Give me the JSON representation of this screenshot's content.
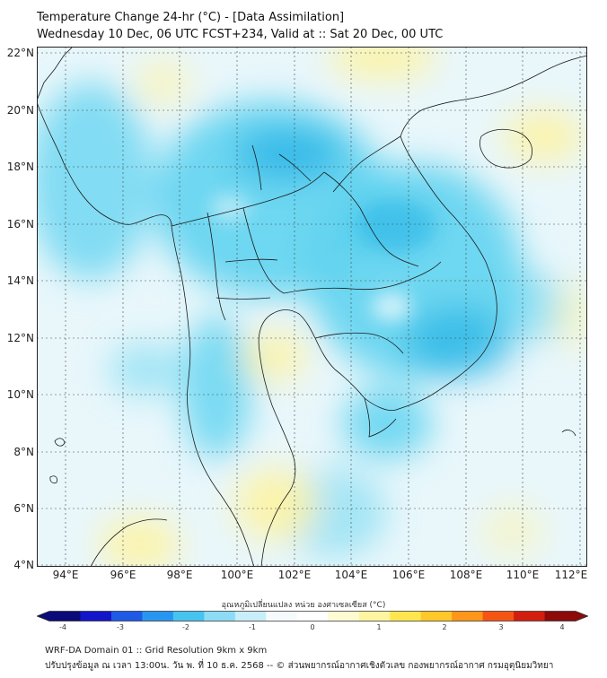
{
  "title_line1": "Temperature Change 24-hr (°C) - [Data Assimilation]",
  "title_line2": "Wednesday 10 Dec, 06 UTC FCST+234, Valid at :: Sat 20 Dec, 00 UTC",
  "lat_labels": [
    "22°N",
    "20°N",
    "18°N",
    "16°N",
    "14°N",
    "12°N",
    "10°N",
    "8°N",
    "6°N",
    "4°N"
  ],
  "lon_labels": [
    "94°E",
    "96°E",
    "98°E",
    "100°E",
    "102°E",
    "104°E",
    "106°E",
    "108°E",
    "110°E",
    "112°E"
  ],
  "colorbar": {
    "title": "อุณหภูมิเปลี่ยนแปลง หน่วย องศาเซลเซียส (°C)",
    "ticks": [
      "-4",
      "-3",
      "-2",
      "-1",
      "0",
      "1",
      "2",
      "3",
      "4"
    ],
    "colors": [
      "#0a0a7a",
      "#1414c8",
      "#1e5ae6",
      "#2896f0",
      "#46c3f0",
      "#8cdcf5",
      "#c8eefa",
      "#f5fbfd",
      "#ffffff",
      "#fdfbd2",
      "#fff5a0",
      "#ffe650",
      "#ffc828",
      "#ff9619",
      "#f55514",
      "#d21e0f",
      "#8c0a0a"
    ]
  },
  "field_colors": {
    "ocean": "#e9f7fb",
    "warm": "#fdf3a6",
    "cool": "#5fd3f0",
    "cold": "#28b4e6"
  },
  "footer_line1": "WRF-DA Domain 01 :: Grid Resolution 9km x 9km",
  "footer_line2": "ปรับปรุงข้อมูล ณ เวลา 13:00น. วัน พ. ที่ 10 ธ.ค. 2568 -- © ส่วนพยากรณ์อากาศเชิงตัวเลข กองพยากรณ์อากาศ กรมอุตุนิยมวิทยา"
}
